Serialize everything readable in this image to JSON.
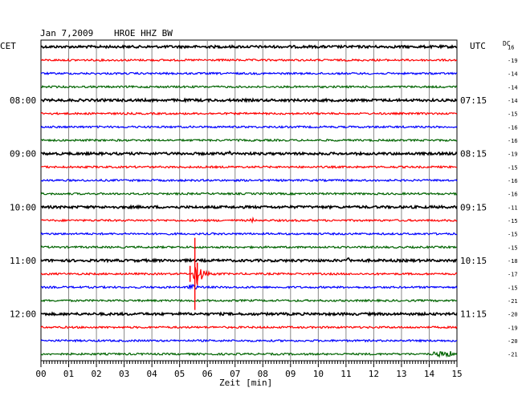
{
  "header": {
    "date": "Jan 7,2009",
    "station": "HROE HHZ BW",
    "left_tz": "CET",
    "right_tz": "UTC",
    "dc_label": "DC"
  },
  "chart_data": {
    "type": "line",
    "title": "Jan 7,2009   HROE HHZ BW",
    "xlabel": "Zeit [min]",
    "x_ticks": [
      "00",
      "01",
      "02",
      "03",
      "04",
      "05",
      "06",
      "07",
      "08",
      "09",
      "10",
      "11",
      "12",
      "13",
      "14",
      "15"
    ],
    "xlim": [
      0,
      15
    ],
    "grid": true,
    "rows_per_hour": 4,
    "row_minutes": 15,
    "left_time_labels": [
      {
        "row": 4,
        "text": "08:00"
      },
      {
        "row": 8,
        "text": "09:00"
      },
      {
        "row": 12,
        "text": "10:00"
      },
      {
        "row": 16,
        "text": "11:00"
      },
      {
        "row": 20,
        "text": "12:00"
      }
    ],
    "right_time_labels": [
      {
        "row": 4,
        "text": "07:15"
      },
      {
        "row": 8,
        "text": "08:15"
      },
      {
        "row": 12,
        "text": "09:15"
      },
      {
        "row": 16,
        "text": "10:15"
      },
      {
        "row": 20,
        "text": "11:15"
      }
    ],
    "trace_colors": [
      "#000000",
      "#ff0000",
      "#0000ff",
      "#006400"
    ],
    "dc_offsets": [
      "16",
      "-19",
      "-14",
      "-14",
      "-14",
      "-15",
      "-16",
      "-16",
      "-19",
      "-15",
      "-16",
      "-16",
      "-11",
      "-15",
      "-15",
      "-15",
      "-18",
      "-17",
      "-15",
      "-21",
      "-20",
      "-19",
      "-20",
      "-21"
    ],
    "events": [
      {
        "row": 17,
        "minute": 5.55,
        "amplitude": "large",
        "description": "earthquake"
      },
      {
        "row": 18,
        "minute": 5.5,
        "amplitude": "medium"
      },
      {
        "row": 16,
        "minute": 11.1,
        "amplitude": "small"
      },
      {
        "row": 13,
        "minute": 7.6,
        "amplitude": "small"
      },
      {
        "row": 8,
        "minute": 6.8,
        "amplitude": "small"
      },
      {
        "row": 23,
        "minute": 14.5,
        "amplitude": "noise-burst"
      }
    ]
  }
}
